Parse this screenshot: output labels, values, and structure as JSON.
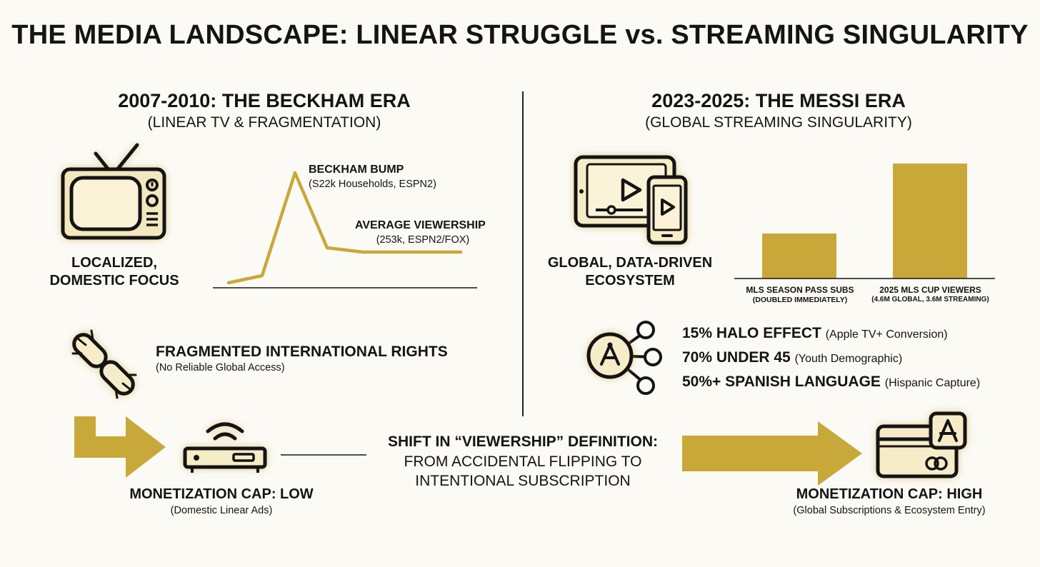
{
  "title": "THE MEDIA LANDSCAPE: LINEAR STRUGGLE vs. STREAMING SINGULARITY",
  "left": {
    "era_title": "2007-2010: THE BECKHAM ERA",
    "era_subtitle": "(LINEAR TV & FRAGMENTATION)",
    "focus_label": [
      "LOCALIZED,",
      "DOMESTIC FOCUS"
    ],
    "bump_title": "BECKHAM BUMP",
    "bump_detail": "(S22k Households, ESPN2)",
    "avg_title": "AVERAGE VIEWERSHIP",
    "avg_detail": "(253k, ESPN2/FOX)",
    "rights_title": "FRAGMENTED INTERNATIONAL RIGHTS",
    "rights_detail": "(No Reliable Global Access)",
    "monetization_title": "MONETIZATION CAP: LOW",
    "monetization_detail": "(Domestic Linear Ads)"
  },
  "right": {
    "era_title": "2023-2025: THE MESSI ERA",
    "era_subtitle": "(GLOBAL STREAMING SINGULARITY)",
    "ecosystem_label": [
      "GLOBAL, DATA-DRIVEN",
      "ECOSYSTEM"
    ],
    "bar1_label": "MLS SEASON PASS SUBS",
    "bar1_detail": "(DOUBLED IMMEDIATELY)",
    "bar2_label": "2025 MLS CUP VIEWERS",
    "bar2_detail": "(4.6M GLOBAL, 3.6M STREAMING)",
    "stats": [
      {
        "bold": "15% HALO EFFECT",
        "detail": "(Apple TV+ Conversion)"
      },
      {
        "bold": "70% UNDER 45",
        "detail": "(Youth Demographic)"
      },
      {
        "bold": "50%+ SPANISH LANGUAGE",
        "detail": "(Hispanic Capture)"
      }
    ],
    "monetization_title": "MONETIZATION CAP: HIGH",
    "monetization_detail": "(Global Subscriptions & Ecosystem Entry)"
  },
  "shift": {
    "line1": "SHIFT IN “VIEWERSHIP” DEFINITION:",
    "line2": "FROM ACCIDENTAL FLIPPING TO",
    "line3": "INTENTIONAL SUBSCRIPTION"
  },
  "colors": {
    "gold": "#c9a83a",
    "gold_dark": "#b8962c",
    "ink": "#141414",
    "bg": "#fbfaf5"
  },
  "icons": [
    "tv-icon",
    "broken-chain-icon",
    "router-icon",
    "tablet-phone-icon",
    "network-share-icon",
    "app-store-card-icon",
    "arrow-icon"
  ]
}
